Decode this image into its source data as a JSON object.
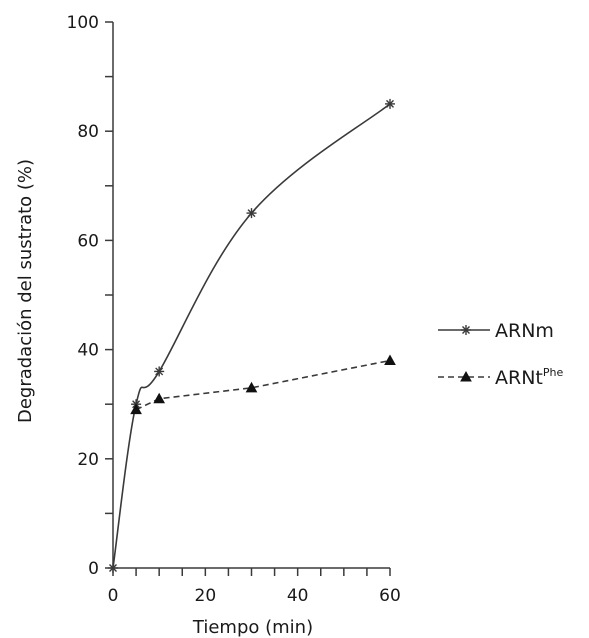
{
  "chart_data": {
    "type": "line",
    "title": "",
    "xlabel": "Tiempo (min)",
    "ylabel": "Degradación del sustrato (%)",
    "xlim": [
      0,
      60
    ],
    "ylim": [
      0,
      100
    ],
    "x_ticks": [
      0,
      20,
      40,
      60
    ],
    "y_ticks": [
      0,
      20,
      40,
      60,
      80,
      100
    ],
    "x_tick_labels": [
      "0",
      "20",
      "40",
      "60"
    ],
    "y_tick_labels": [
      "0",
      "20",
      "40",
      "60",
      "80",
      "100"
    ],
    "grid": false,
    "legend_position": "right",
    "series": [
      {
        "name": "ARNm",
        "marker": "asterisk",
        "line_style": "solid",
        "x": [
          0,
          5,
          10,
          30,
          60
        ],
        "y": [
          0,
          30,
          36,
          65,
          85
        ]
      },
      {
        "name": "ARNt",
        "name_superscript": "Phe",
        "marker": "triangle",
        "line_style": "dashed",
        "x": [
          5,
          10,
          30,
          60
        ],
        "y": [
          29,
          31,
          33,
          38
        ]
      }
    ],
    "colors": {
      "line": "#3a3a3a",
      "text": "#1a1a1a"
    }
  }
}
